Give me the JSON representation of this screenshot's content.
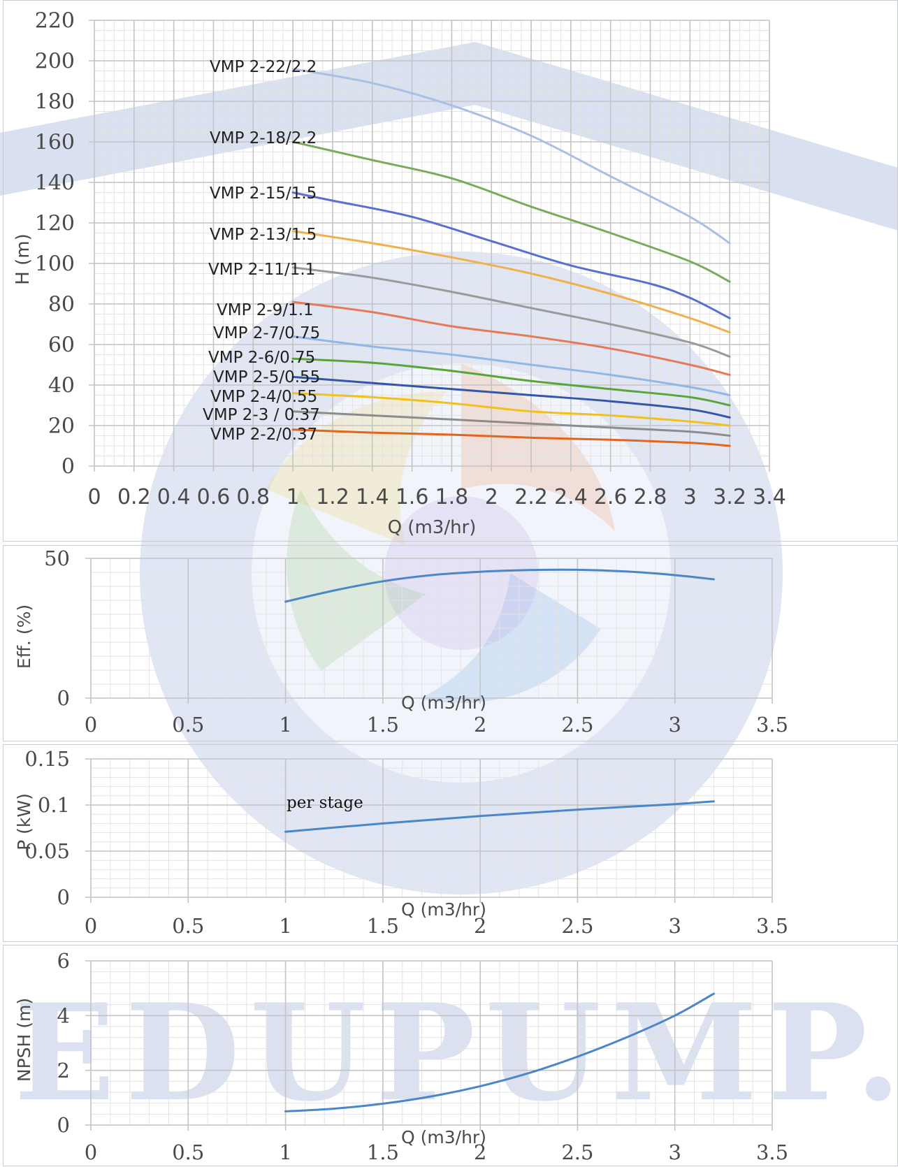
{
  "watermark": {
    "text": "EDUPUMP.IR"
  },
  "colors": {
    "grid": "#d9d9d9",
    "axis": "#bfbfbf",
    "blue_line": "#4a86c8"
  },
  "chart_data": [
    {
      "type": "line",
      "xlabel": "Q (m3/hr)",
      "ylabel": "H (m)",
      "xlim": [
        0,
        3.4
      ],
      "ylim": [
        0,
        220
      ],
      "xticks": [
        "0",
        "0.2",
        "0.4",
        "0.6",
        "0.8",
        "1",
        "1.2",
        "1.4",
        "1.6",
        "1.8",
        "2",
        "2.2",
        "2.4",
        "2.6",
        "2.8",
        "3",
        "3.2",
        "3.4"
      ],
      "yticks": [
        "0",
        "20",
        "40",
        "60",
        "80",
        "100",
        "120",
        "140",
        "160",
        "180",
        "200",
        "220"
      ],
      "grid": true,
      "series": [
        {
          "name": "VMP 2-22/2.2",
          "color": "#a9c0e4",
          "x": [
            1,
            1.4,
            1.8,
            2.2,
            2.6,
            3.0,
            3.2
          ],
          "y": [
            196,
            189,
            178,
            163,
            143,
            123,
            110
          ]
        },
        {
          "name": "VMP 2-18/2.2",
          "color": "#7aab5c",
          "x": [
            1,
            1.4,
            1.8,
            2.2,
            2.6,
            3.0,
            3.2
          ],
          "y": [
            160,
            151,
            142,
            128,
            115,
            101,
            91
          ]
        },
        {
          "name": "VMP 2-15/1.5",
          "color": "#5b6fd0",
          "x": [
            1,
            1.2,
            1.6,
            2.0,
            2.4,
            2.8,
            3.0,
            3.2
          ],
          "y": [
            135,
            131,
            123,
            111,
            99,
            90,
            83,
            73
          ]
        },
        {
          "name": "VMP 2-13/1.5",
          "color": "#f0b04c",
          "x": [
            1,
            1.4,
            1.8,
            2.2,
            2.6,
            3.0,
            3.2
          ],
          "y": [
            116,
            110,
            103,
            95,
            85,
            73,
            66
          ]
        },
        {
          "name": "VMP 2-11/1.1",
          "color": "#9a9a9a",
          "x": [
            1,
            1.4,
            1.8,
            2.2,
            2.6,
            3.0,
            3.2
          ],
          "y": [
            98,
            93,
            86,
            78,
            70,
            61,
            54
          ]
        },
        {
          "name": "VMP 2-9/1.1",
          "color": "#e57a58",
          "x": [
            1,
            1.4,
            1.8,
            2.2,
            2.6,
            3.0,
            3.2
          ],
          "y": [
            81,
            76,
            69,
            64,
            58,
            50,
            45
          ]
        },
        {
          "name": "VMP 2-7/0.75",
          "color": "#8fb8e6",
          "x": [
            1,
            1.4,
            1.8,
            2.2,
            2.6,
            3.0,
            3.2
          ],
          "y": [
            64,
            59,
            55,
            50,
            45,
            39,
            35
          ]
        },
        {
          "name": "VMP 2-6/0.75",
          "color": "#5aa43a",
          "x": [
            1,
            1.4,
            1.8,
            2.2,
            2.6,
            3.0,
            3.2
          ],
          "y": [
            53,
            51,
            47,
            42,
            38,
            34,
            30
          ]
        },
        {
          "name": "VMP 2-5/0.55",
          "color": "#3556a8",
          "x": [
            1,
            1.4,
            1.8,
            2.2,
            2.6,
            3.0,
            3.2
          ],
          "y": [
            44,
            41,
            38,
            35,
            32,
            28,
            24
          ]
        },
        {
          "name": "VMP 2-4/0.55",
          "color": "#f2c01c",
          "x": [
            1,
            1.4,
            1.8,
            2.2,
            2.6,
            3.0,
            3.2
          ],
          "y": [
            36,
            34,
            31,
            27,
            25,
            22,
            20
          ]
        },
        {
          "name": "VMP 2-3 / 0.37",
          "color": "#8c8c8c",
          "x": [
            1,
            1.4,
            1.8,
            2.2,
            2.6,
            3.0,
            3.2
          ],
          "y": [
            27,
            25,
            23,
            21,
            19,
            17,
            15
          ]
        },
        {
          "name": "VMP 2-2/0.37",
          "color": "#e0661e",
          "x": [
            1,
            1.4,
            1.8,
            2.2,
            2.6,
            3.0,
            3.2
          ],
          "y": [
            18,
            16.5,
            15.5,
            14,
            13,
            11.5,
            10
          ]
        }
      ]
    },
    {
      "type": "line",
      "xlabel": "Q (m3/hr)",
      "ylabel": "Eff. (%)",
      "xlim": [
        0,
        3.5
      ],
      "ylim": [
        0,
        50
      ],
      "xticks": [
        "0",
        "0.5",
        "1",
        "1.5",
        "2",
        "2.5",
        "3",
        "3.5"
      ],
      "yticks": [
        "0",
        "50"
      ],
      "grid": true,
      "series": [
        {
          "x": [
            1,
            1.25,
            1.5,
            1.75,
            2,
            2.25,
            2.5,
            2.75,
            3,
            3.2
          ],
          "y": [
            34.5,
            38.5,
            41.8,
            44,
            45.2,
            45.8,
            45.9,
            45.3,
            44,
            42.5
          ]
        }
      ]
    },
    {
      "type": "line",
      "xlabel": "Q (m3/hr)",
      "ylabel": "P (kW)",
      "xlim": [
        0,
        3.5
      ],
      "ylim": [
        0,
        0.15
      ],
      "xticks": [
        "0",
        "0.5",
        "1",
        "1.5",
        "2",
        "2.5",
        "3",
        "3.5"
      ],
      "yticks": [
        "0",
        "0.05",
        "0.1",
        "0.15"
      ],
      "annotation": "per stage",
      "grid": true,
      "series": [
        {
          "x": [
            1,
            1.5,
            2,
            2.5,
            3,
            3.2
          ],
          "y": [
            0.071,
            0.08,
            0.088,
            0.095,
            0.101,
            0.104
          ]
        }
      ]
    },
    {
      "type": "line",
      "xlabel": "Q (m3/hr)",
      "ylabel": "NPSH (m)",
      "xlim": [
        0,
        3.5
      ],
      "ylim": [
        0,
        6
      ],
      "xticks": [
        "0",
        "0.5",
        "1",
        "1.5",
        "2",
        "2.5",
        "3",
        "3.5"
      ],
      "yticks": [
        "0",
        "2",
        "4",
        "6"
      ],
      "grid": true,
      "series": [
        {
          "x": [
            1,
            1.25,
            1.5,
            1.75,
            2,
            2.25,
            2.5,
            2.75,
            3,
            3.2
          ],
          "y": [
            0.5,
            0.6,
            0.78,
            1.05,
            1.42,
            1.9,
            2.5,
            3.2,
            4.0,
            4.8
          ]
        }
      ]
    }
  ]
}
